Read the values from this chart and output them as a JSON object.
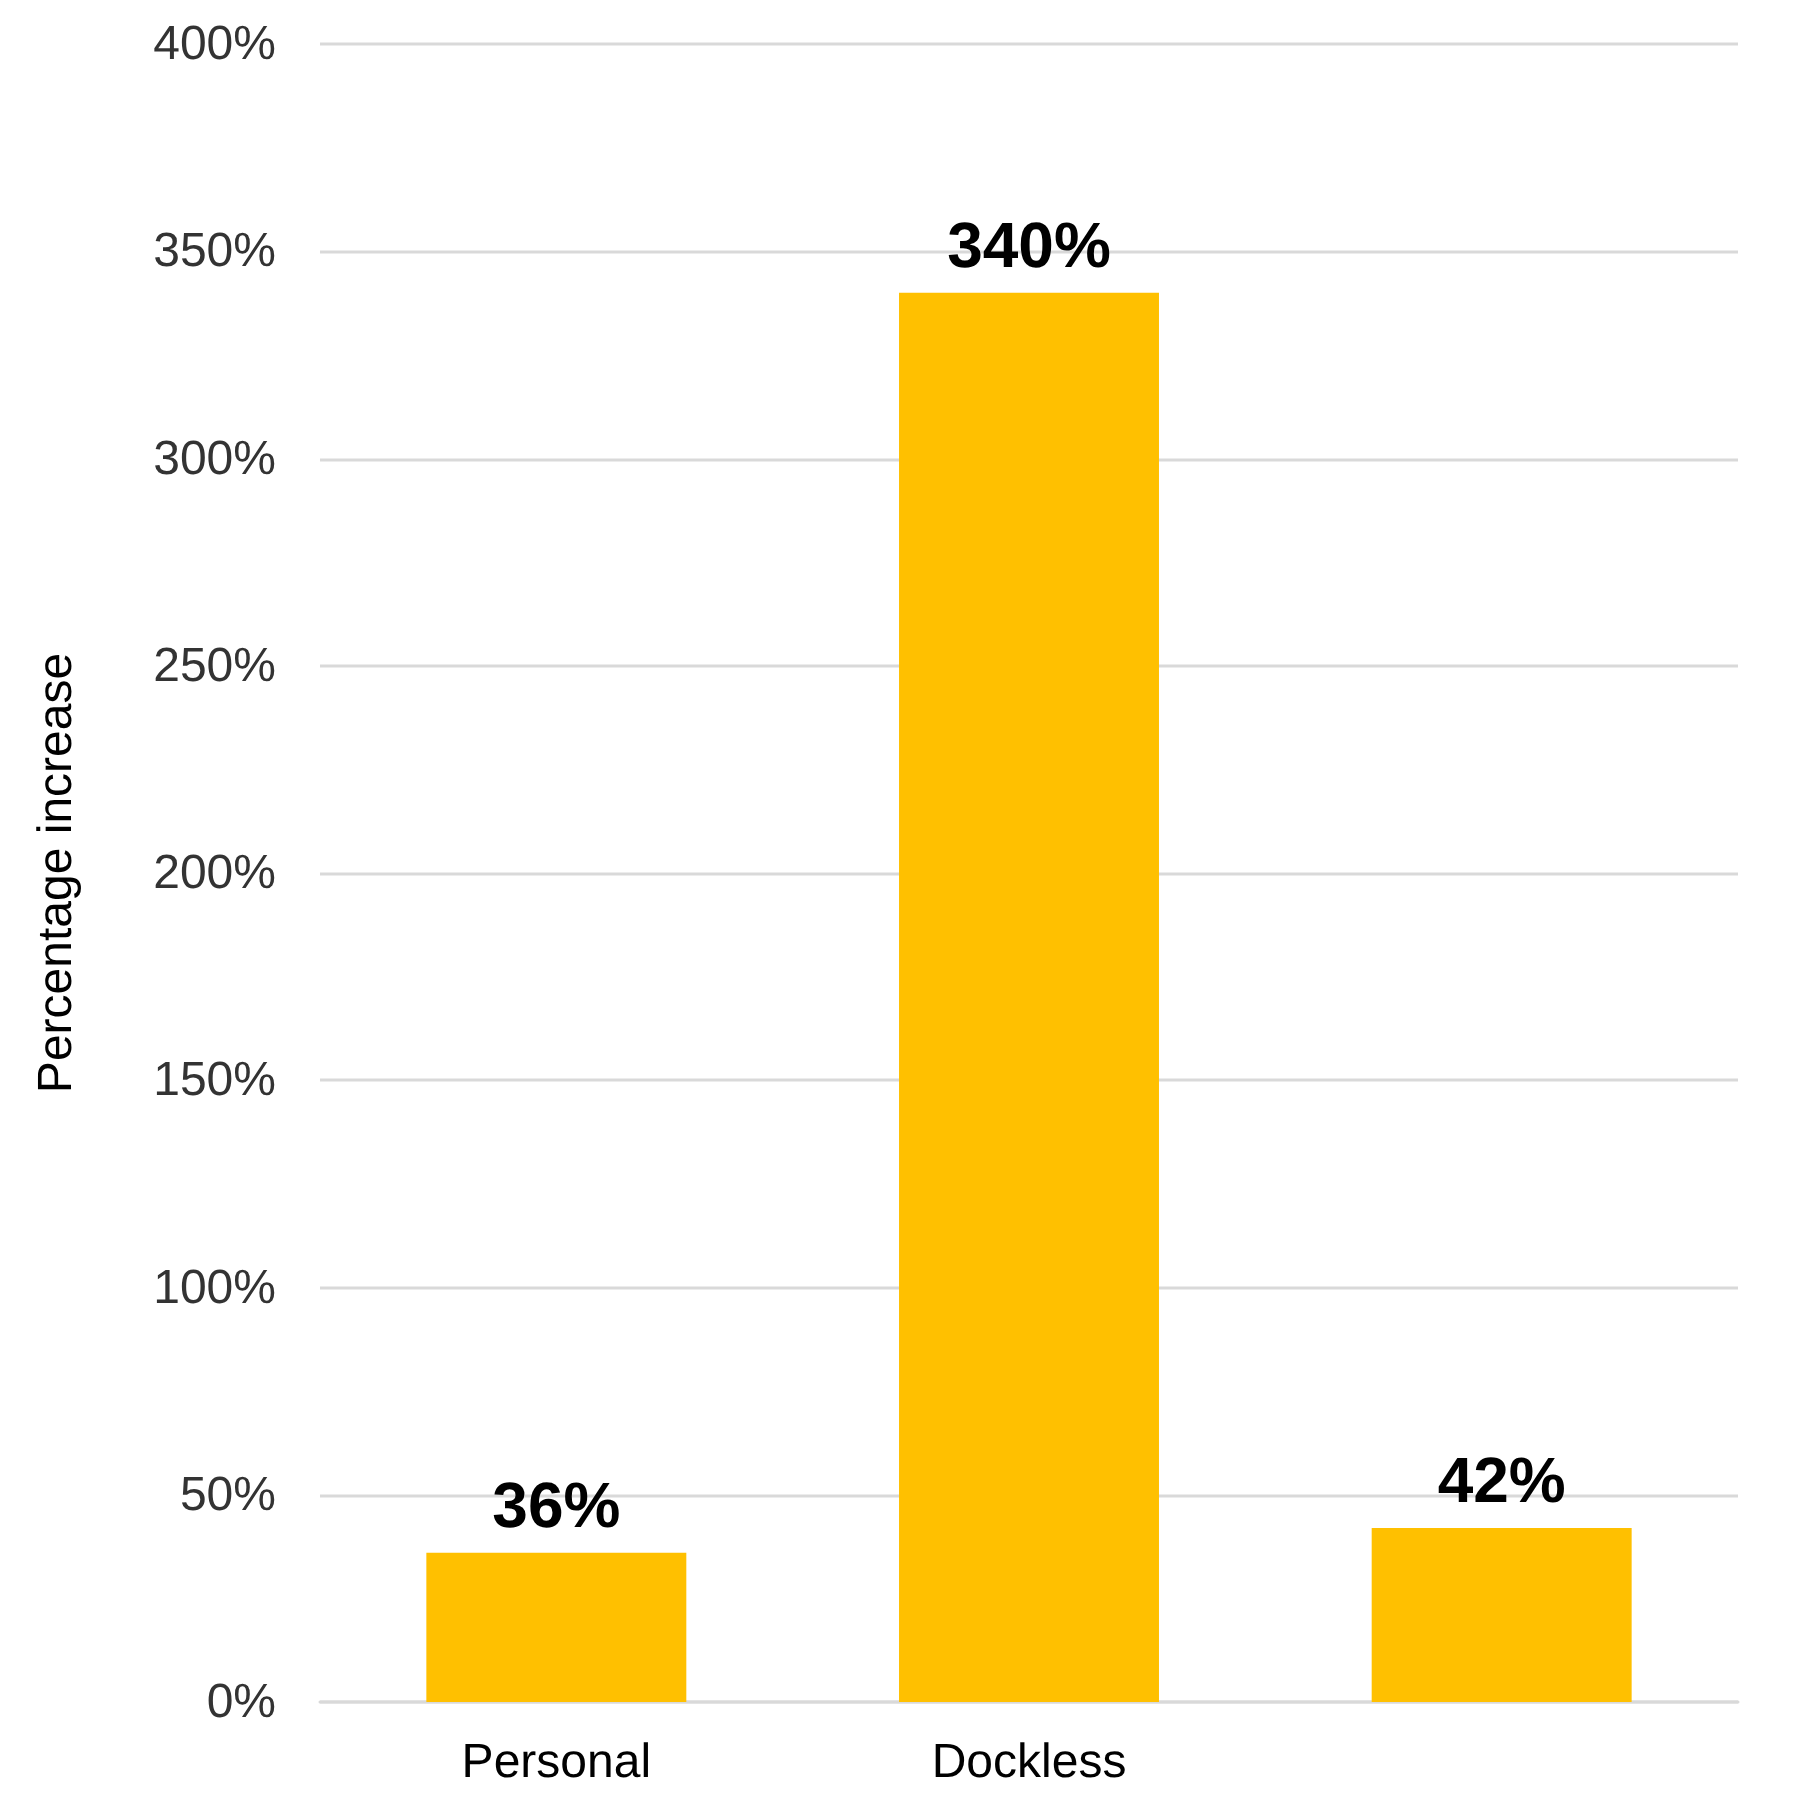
{
  "chart_data": {
    "type": "bar",
    "ylabel": "Percentage increase",
    "categories": [
      "Personal",
      "Dockless",
      null
    ],
    "values": [
      36,
      340,
      42
    ],
    "color": "#ffc000",
    "value_labels": [
      "36%",
      "340%",
      "42%"
    ],
    "ylim": [
      0,
      400
    ],
    "yticks": [
      {
        "value": 0,
        "label": "0%"
      },
      {
        "value": 50,
        "label": "50%"
      },
      {
        "value": 100,
        "label": "100%"
      },
      {
        "value": 150,
        "label": "150%"
      },
      {
        "value": 200,
        "label": "200%"
      },
      {
        "value": 250,
        "label": "250%"
      },
      {
        "value": 300,
        "label": "300%"
      },
      {
        "value": 350,
        "label": "350%"
      },
      {
        "value": 400,
        "label": "400%"
      }
    ],
    "grid": "y"
  }
}
